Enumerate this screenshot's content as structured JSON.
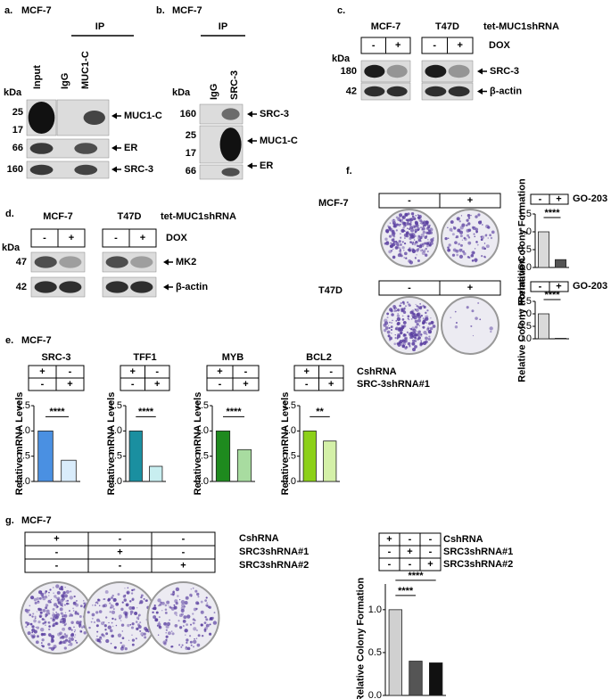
{
  "panel_a": {
    "label": "a.",
    "cell_line": "MCF-7",
    "ip": "IP",
    "lanes": [
      "Input",
      "IgG",
      "MUC1-C"
    ],
    "kda": "kDa",
    "markers": [
      "25",
      "17",
      "66",
      "160"
    ],
    "proteins": [
      "MUC1-C",
      "ER",
      "SRC-3"
    ]
  },
  "panel_b": {
    "label": "b.",
    "cell_line": "MCF-7",
    "ip": "IP",
    "lanes": [
      "IgG",
      "SRC-3"
    ],
    "kda": "kDa",
    "markers": [
      "160",
      "25",
      "17",
      "66"
    ],
    "proteins": [
      "SRC-3",
      "MUC1-C",
      "ER"
    ]
  },
  "panel_c": {
    "label": "c.",
    "groups": [
      {
        "cell_line": "MCF-7",
        "signs": [
          [
            "-",
            "+"
          ]
        ]
      },
      {
        "cell_line": "T47D",
        "signs": [
          [
            "-",
            "+"
          ]
        ]
      }
    ],
    "construct": "tet-MUC1shRNA",
    "treatment": "DOX",
    "kda": "kDa",
    "markers": [
      "180",
      "42"
    ],
    "proteins": [
      "SRC-3",
      "β-actin"
    ]
  },
  "panel_d": {
    "label": "d.",
    "groups": [
      {
        "cell_line": "MCF-7",
        "signs": [
          [
            "-",
            "+"
          ]
        ]
      },
      {
        "cell_line": "T47D",
        "signs": [
          [
            "-",
            "+"
          ]
        ]
      }
    ],
    "construct": "tet-MUC1shRNA",
    "treatment": "DOX",
    "kda": "kDa",
    "markers": [
      "47",
      "42"
    ],
    "proteins": [
      "MK2",
      "β-actin"
    ]
  },
  "panel_f": {
    "label": "f.",
    "rows": [
      {
        "cell_line": "MCF-7",
        "plate_signs": [
          [
            "-",
            "+"
          ]
        ],
        "chart": {
          "type": "bar",
          "signs": [
            [
              "-",
              "+"
            ]
          ],
          "treatment": "GO-203",
          "ylabel": "Relative Colony Formation",
          "ylim": [
            0,
            1.5
          ],
          "yticks": [
            {
              "value": 0,
              "label": "0.0"
            },
            {
              "value": 0.5,
              "label": "0.5"
            },
            {
              "value": 1,
              "label": "1.0"
            },
            {
              "value": 1.5,
              "label": "1.5"
            }
          ],
          "values": [
            1.0,
            0.22
          ],
          "colors": [
            "#d9d9d9",
            "#555555"
          ],
          "significance": [
            "****"
          ]
        }
      },
      {
        "cell_line": "T47D",
        "plate_signs": [
          [
            "-",
            "+"
          ]
        ],
        "chart": {
          "type": "bar",
          "signs": [
            [
              "-",
              "+"
            ]
          ],
          "treatment": "GO-203",
          "ylabel": "Relative Colony Formation",
          "ylim": [
            0,
            1.5
          ],
          "yticks": [
            {
              "value": 0,
              "label": "0.0"
            },
            {
              "value": 0.5,
              "label": "0.5"
            },
            {
              "value": 1,
              "label": "1.0"
            },
            {
              "value": 1.5,
              "label": "1.5"
            }
          ],
          "values": [
            1.0,
            0.02
          ],
          "colors": [
            "#d9d9d9",
            "#555555"
          ],
          "significance": [
            "****"
          ]
        }
      }
    ]
  },
  "panel_e": {
    "label": "e.",
    "cell_line": "MCF-7",
    "row_labels": [
      "CshRNA",
      "SRC-3shRNA#1"
    ],
    "charts": [
      {
        "type": "bar",
        "title": "SRC-3",
        "signs": [
          [
            "+",
            "-"
          ],
          [
            "-",
            "+"
          ]
        ],
        "ylabel": "Relative mRNA Levels",
        "ylim": [
          0,
          1.5
        ],
        "yticks": [
          {
            "value": 0,
            "label": "0.0"
          },
          {
            "value": 0.5,
            "label": "0.5"
          },
          {
            "value": 1,
            "label": "1.0"
          },
          {
            "value": 1.5,
            "label": "1.5"
          }
        ],
        "values": [
          1.0,
          0.42
        ],
        "colors": [
          "#4a90e2",
          "#d9ecfb"
        ],
        "significance": [
          "****"
        ]
      },
      {
        "type": "bar",
        "title": "TFF1",
        "signs": [
          [
            "+",
            "-"
          ],
          [
            "-",
            "+"
          ]
        ],
        "ylabel": "Relative mRNA Levels",
        "ylim": [
          0,
          1.5
        ],
        "yticks": [
          {
            "value": 0,
            "label": "0.0"
          },
          {
            "value": 0.5,
            "label": "0.5"
          },
          {
            "value": 1,
            "label": "1.0"
          },
          {
            "value": 1.5,
            "label": "1.5"
          }
        ],
        "values": [
          1.0,
          0.3
        ],
        "colors": [
          "#1a8fa0",
          "#c8eef0"
        ],
        "significance": [
          "****"
        ]
      },
      {
        "type": "bar",
        "title": "MYB",
        "signs": [
          [
            "+",
            "-"
          ],
          [
            "-",
            "+"
          ]
        ],
        "ylabel": "Relative mRNA Levels",
        "ylim": [
          0,
          1.5
        ],
        "yticks": [
          {
            "value": 0,
            "label": "0.0"
          },
          {
            "value": 0.5,
            "label": "0.5"
          },
          {
            "value": 1,
            "label": "1.0"
          },
          {
            "value": 1.5,
            "label": "1.5"
          }
        ],
        "values": [
          1.0,
          0.63
        ],
        "colors": [
          "#1e8a1e",
          "#a8dca0"
        ],
        "significance": [
          "****"
        ]
      },
      {
        "type": "bar",
        "title": "BCL2",
        "signs": [
          [
            "+",
            "-"
          ],
          [
            "-",
            "+"
          ]
        ],
        "ylabel": "Relative mRNA Levels",
        "ylim": [
          0,
          1.5
        ],
        "yticks": [
          {
            "value": 0,
            "label": "0.0"
          },
          {
            "value": 0.5,
            "label": "0.5"
          },
          {
            "value": 1,
            "label": "1.0"
          },
          {
            "value": 1.5,
            "label": "1.5"
          }
        ],
        "values": [
          1.0,
          0.8
        ],
        "colors": [
          "#8cd018",
          "#d4f0a8"
        ],
        "significance": [
          "**"
        ]
      }
    ]
  },
  "panel_g": {
    "label": "g.",
    "cell_line": "MCF-7",
    "plate_signs": [
      [
        "+",
        "-",
        "-"
      ],
      [
        "-",
        "+",
        "-"
      ],
      [
        "-",
        "-",
        "+"
      ]
    ],
    "row_labels": [
      "CshRNA",
      "SRC3shRNA#1",
      "SRC3shRNA#2"
    ],
    "chart": {
      "type": "bar",
      "signs": [
        [
          "+",
          "-",
          "-"
        ],
        [
          "-",
          "+",
          "-"
        ],
        [
          "-",
          "-",
          "+"
        ]
      ],
      "row_labels": [
        "CshRNA",
        "SRC3shRNA#1",
        "SRC3shRNA#2"
      ],
      "ylabel": "Relative Colony Formation",
      "ylim": [
        0,
        1.3
      ],
      "yticks": [
        {
          "value": 0,
          "label": "0.0"
        },
        {
          "value": 0.5,
          "label": "0.5"
        },
        {
          "value": 1,
          "label": "1.0"
        }
      ],
      "values": [
        1.0,
        0.4,
        0.38
      ],
      "colors": [
        "#d0d0d0",
        "#555555",
        "#111111"
      ],
      "significance": [
        "****",
        "****"
      ]
    }
  }
}
